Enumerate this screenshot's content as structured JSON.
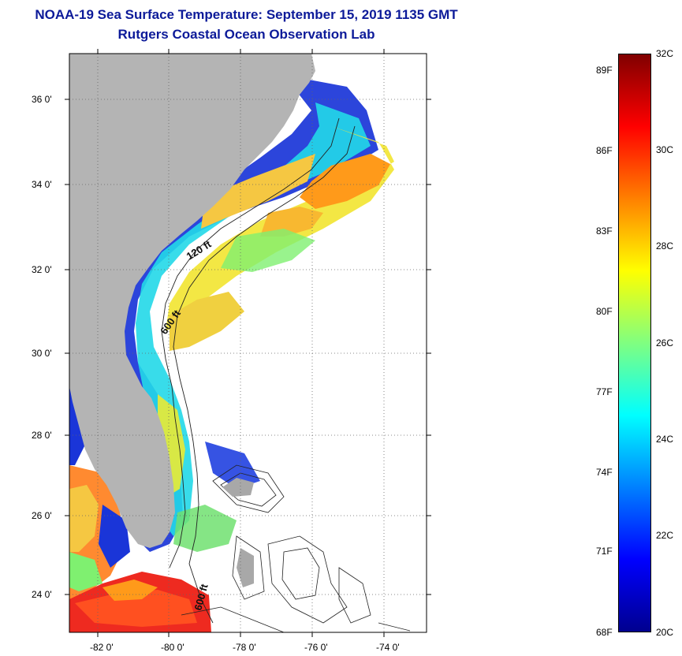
{
  "title": {
    "line1": "NOAA-19 Sea Surface Temperature:  September 15, 2019 1135 GMT",
    "line2": "Rutgers Coastal Ocean Observation Lab"
  },
  "map": {
    "lat_labels": [
      "36 0'",
      "34 0'",
      "32 0'",
      "30 0'",
      "28 0'",
      "26 0'",
      "24 0'"
    ],
    "lon_labels": [
      "-82 0'",
      "-80 0'",
      "-78 0'",
      "-76 0'",
      "-74 0'"
    ],
    "contour_labels": [
      "120 ft",
      "600 ft",
      "600 ft"
    ],
    "colors": {
      "land": "#b4b4b4",
      "cloud": "#ffffff"
    }
  },
  "colorbar": {
    "fahrenheit": [
      "89F",
      "86F",
      "83F",
      "80F",
      "77F",
      "74F",
      "71F",
      "68F"
    ],
    "celsius": [
      "32C",
      "30C",
      "28C",
      "26C",
      "24C",
      "22C",
      "20C"
    ],
    "range_c": [
      20,
      32
    ],
    "colors": [
      "#00008f",
      "#0000ff",
      "#0080ff",
      "#00ffff",
      "#80ff80",
      "#ffff00",
      "#ff8000",
      "#ff0000",
      "#800000"
    ]
  }
}
